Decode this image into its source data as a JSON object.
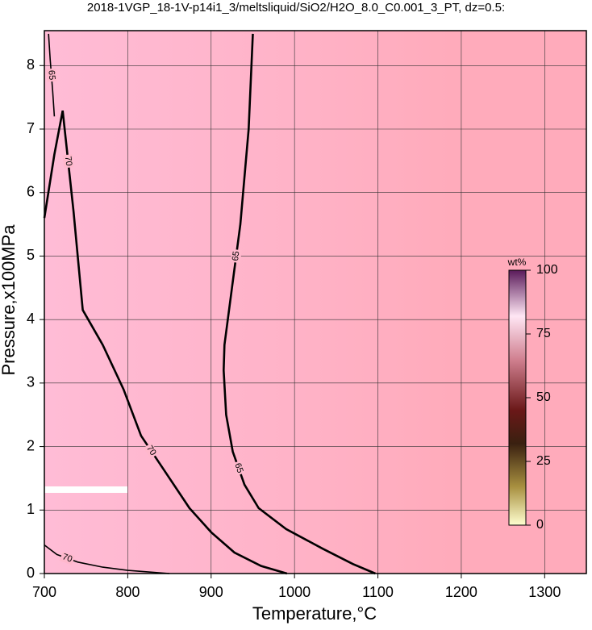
{
  "chart_data": {
    "type": "contour",
    "title": "2018-1VGP_18-1V-p14i1_3/meltsliquid/SiO2/H2O_8.0_C0.001_3_PT, dz=0.5:",
    "xlabel": "Temperature,°C",
    "ylabel": "Pressure,x100MPa",
    "xlim": [
      700,
      1350
    ],
    "ylim": [
      0,
      8.55
    ],
    "xticks": [
      700,
      800,
      900,
      1000,
      1100,
      1200,
      1300
    ],
    "yticks": [
      0,
      1,
      2,
      3,
      4,
      5,
      6,
      7,
      8
    ],
    "grid": true,
    "series": [
      {
        "name": "65",
        "color": "#000000",
        "x": [
          950,
          945,
          935,
          925,
          916,
          915,
          918,
          926,
          940,
          957,
          990,
          1034,
          1070,
          1097
        ],
        "values": [
          8.5,
          7,
          5.5,
          4.5,
          3.6,
          3.2,
          2.5,
          1.92,
          1.4,
          1.03,
          0.7,
          0.39,
          0.15,
          0
        ]
      },
      {
        "name": "70",
        "color": "#000000",
        "x": [
          700,
          712,
          722,
          735,
          746,
          770,
          795,
          816,
          840,
          874,
          900,
          928,
          960,
          991
        ],
        "values": [
          5.6,
          6.6,
          7.29,
          5.7,
          4.15,
          3.6,
          2.9,
          2.17,
          1.7,
          1.03,
          0.65,
          0.33,
          0.12,
          0
        ]
      },
      {
        "name": "70",
        "color": "#000000",
        "x": [
          700,
          715,
          740,
          770,
          800,
          830,
          850
        ],
        "values": [
          0.45,
          0.3,
          0.18,
          0.1,
          0.05,
          0.02,
          0
        ]
      },
      {
        "name": "65",
        "color": "#000000",
        "x": [
          705,
          707,
          710,
          712
        ],
        "values": [
          8.5,
          8.1,
          7.6,
          7.2
        ]
      }
    ],
    "colorbar": {
      "label": "wt%",
      "lim": [
        0,
        100
      ],
      "ticks": [
        0,
        25,
        50,
        75,
        100
      ]
    }
  }
}
